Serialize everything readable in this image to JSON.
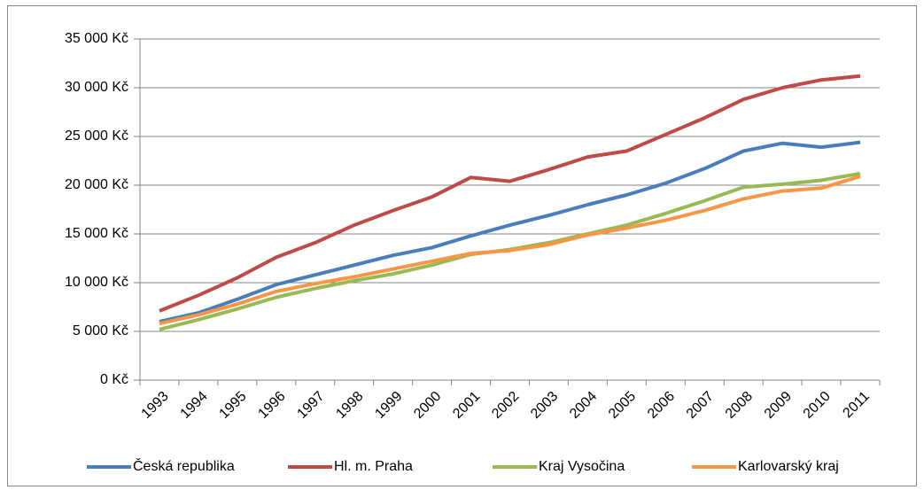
{
  "chart_data": {
    "type": "line",
    "categories": [
      "1993",
      "1994",
      "1995",
      "1996",
      "1997",
      "1998",
      "1999",
      "2000",
      "2001",
      "2002",
      "2003",
      "2004",
      "2005",
      "2006",
      "2007",
      "2008",
      "2009",
      "2010",
      "2011"
    ],
    "series": [
      {
        "name": "Česká republika",
        "color": "#4a7ebb",
        "values": [
          6000,
          6900,
          8300,
          9800,
          10800,
          11800,
          12800,
          13600,
          14800,
          15900,
          16900,
          18000,
          19000,
          20200,
          21700,
          23500,
          24300,
          23900,
          24400
        ]
      },
      {
        "name": "Hl. m. Praha",
        "color": "#be4b48",
        "values": [
          7100,
          8700,
          10500,
          12600,
          14100,
          15900,
          17400,
          18800,
          20800,
          20400,
          21600,
          22900,
          23500,
          25200,
          26900,
          28800,
          30000,
          30800,
          31200
        ]
      },
      {
        "name": "Kraj Vysočina",
        "color": "#98b954",
        "values": [
          5200,
          6200,
          7300,
          8500,
          9400,
          10200,
          10900,
          11800,
          12900,
          13400,
          14100,
          15000,
          15900,
          17100,
          18400,
          19800,
          20100,
          20500,
          21200
        ]
      },
      {
        "name": "Karlovarský kraj",
        "color": "#f79646",
        "values": [
          5800,
          6700,
          7800,
          9100,
          9900,
          10600,
          11400,
          12200,
          13000,
          13300,
          13900,
          14900,
          15600,
          16400,
          17400,
          18600,
          19400,
          19700,
          20900
        ]
      }
    ],
    "ylim": [
      0,
      35000
    ],
    "yticks": [
      {
        "value": 0,
        "label": "0 Kč"
      },
      {
        "value": 5000,
        "label": "5 000 Kč"
      },
      {
        "value": 10000,
        "label": "10 000 Kč"
      },
      {
        "value": 15000,
        "label": "15 000 Kč"
      },
      {
        "value": 20000,
        "label": "20 000 Kč"
      },
      {
        "value": 25000,
        "label": "25 000 Kč"
      },
      {
        "value": 30000,
        "label": "30 000 Kč"
      },
      {
        "value": 35000,
        "label": "35 000 Kč"
      }
    ],
    "grid": true,
    "legend": "bottom"
  }
}
